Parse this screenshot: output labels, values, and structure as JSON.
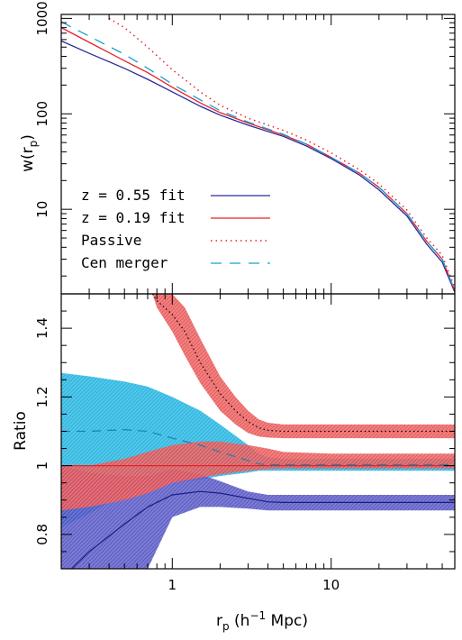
{
  "chart_data": [
    {
      "type": "line",
      "panel": "top",
      "ylabel": "w(r_p)",
      "yscale": "log",
      "xscale": "log",
      "xlim": [
        0.2,
        60
      ],
      "ylim": [
        1.3,
        1100
      ],
      "yticks": [
        {
          "value": 10,
          "label": "10"
        },
        {
          "value": 100,
          "label": "100"
        },
        {
          "value": 1000,
          "label": "1000"
        }
      ],
      "legend_position": "bottom-left",
      "series": [
        {
          "name": "z = 0.55 fit",
          "color": "#2a2a9a",
          "style": "solid",
          "x": [
            0.2,
            0.3,
            0.5,
            0.7,
            1.0,
            1.5,
            2.0,
            3.0,
            5.0,
            7.0,
            10.0,
            15.0,
            20.0,
            30.0,
            40.0,
            50.0,
            60.0
          ],
          "y": [
            580,
            430,
            300,
            230,
            170,
            120,
            97,
            76,
            58,
            46,
            34,
            23,
            16,
            8.5,
            4.3,
            2.8,
            1.35
          ]
        },
        {
          "name": "z = 0.19 fit",
          "color": "#e8202a",
          "style": "solid",
          "x": [
            0.2,
            0.3,
            0.5,
            0.7,
            1.0,
            1.5,
            2.0,
            3.0,
            5.0,
            7.0,
            10.0,
            15.0,
            20.0,
            30.0,
            40.0,
            50.0,
            60.0
          ],
          "y": [
            800,
            560,
            360,
            270,
            190,
            130,
            103,
            80,
            60,
            48,
            35,
            24,
            17,
            9.0,
            4.6,
            3.0,
            1.4
          ]
        },
        {
          "name": "Passive",
          "color": "#e8202a",
          "style": "dotted",
          "x": [
            0.4,
            0.5,
            0.7,
            1.0,
            1.5,
            2.0,
            3.0,
            5.0,
            7.0,
            10.0,
            15.0,
            20.0,
            30.0,
            40.0,
            50.0,
            60.0
          ],
          "y": [
            1000,
            800,
            500,
            290,
            170,
            123,
            90,
            67,
            53,
            39,
            26,
            18.5,
            9.8,
            5.0,
            3.3,
            1.5
          ]
        },
        {
          "name": "Cen merger",
          "color": "#1aa0d0",
          "style": "dashed",
          "x": [
            0.2,
            0.3,
            0.5,
            0.7,
            1.0,
            1.5,
            2.0,
            3.0,
            5.0,
            7.0,
            10.0,
            15.0,
            20.0,
            30.0,
            40.0,
            50.0,
            60.0
          ],
          "y": [
            920,
            650,
            420,
            300,
            205,
            140,
            108,
            82,
            61,
            48,
            35,
            24,
            17,
            9.0,
            4.6,
            3.0,
            1.4
          ]
        }
      ]
    },
    {
      "type": "area",
      "panel": "bottom",
      "xlabel": "r_p (h^-1 Mpc)",
      "ylabel": "Ratio",
      "xscale": "log",
      "xlim": [
        0.2,
        60
      ],
      "ylim": [
        0.7,
        1.5
      ],
      "xticks": [
        {
          "value": 1,
          "label": "1"
        },
        {
          "value": 10,
          "label": "10"
        }
      ],
      "yticks": [
        {
          "value": 0.8,
          "label": "0.8"
        },
        {
          "value": 1.0,
          "label": "1"
        },
        {
          "value": 1.2,
          "label": "1.2"
        },
        {
          "value": 1.4,
          "label": "1.4"
        }
      ],
      "reference_line": {
        "y": 1.0,
        "color": "#e8202a"
      },
      "bands": [
        {
          "color": "#4848c0",
          "x": [
            0.2,
            0.3,
            0.5,
            0.7,
            1.0,
            1.5,
            2.0,
            3.0,
            4.0,
            5.0,
            10.0,
            20.0,
            40.0,
            60.0
          ],
          "upper": [
            1.0,
            0.98,
            0.97,
            0.97,
            0.99,
            0.975,
            0.955,
            0.925,
            0.915,
            0.915,
            0.915,
            0.915,
            0.915,
            0.915
          ],
          "lower": [
            0.6,
            0.6,
            0.63,
            0.7,
            0.85,
            0.88,
            0.88,
            0.875,
            0.87,
            0.87,
            0.87,
            0.87,
            0.87,
            0.87
          ],
          "center": [
            0.67,
            0.75,
            0.83,
            0.88,
            0.915,
            0.925,
            0.92,
            0.905,
            0.895,
            0.893,
            0.893,
            0.893,
            0.893,
            0.893
          ]
        },
        {
          "color": "#1ab0dc",
          "x": [
            0.2,
            0.3,
            0.5,
            0.7,
            1.0,
            1.5,
            2.0,
            3.0,
            3.5,
            4.0,
            5.0,
            10.0,
            20.0,
            40.0,
            60.0
          ],
          "upper": [
            1.27,
            1.26,
            1.245,
            1.23,
            1.2,
            1.16,
            1.12,
            1.06,
            1.035,
            1.025,
            1.02,
            1.02,
            1.02,
            1.02,
            1.02
          ],
          "lower": [
            0.82,
            0.86,
            0.92,
            0.94,
            0.95,
            0.96,
            0.97,
            0.98,
            0.985,
            0.985,
            0.985,
            0.985,
            0.985,
            0.985,
            0.985
          ],
          "center": [
            1.1,
            1.1,
            1.105,
            1.1,
            1.08,
            1.06,
            1.04,
            1.015,
            1.005,
            1.003,
            1.003,
            1.003,
            1.003,
            1.003,
            1.003
          ]
        },
        {
          "color": "#e85050",
          "x": [
            0.2,
            0.3,
            0.5,
            0.7,
            1.0,
            1.5,
            2.0,
            3.0,
            4.0,
            5.0,
            10.0,
            20.0,
            40.0,
            60.0
          ],
          "upper": [
            1.0,
            1.0,
            1.02,
            1.04,
            1.06,
            1.07,
            1.07,
            1.06,
            1.05,
            1.04,
            1.035,
            1.035,
            1.035,
            1.035
          ],
          "lower": [
            0.87,
            0.88,
            0.9,
            0.92,
            0.95,
            0.965,
            0.975,
            0.985,
            0.99,
            0.992,
            0.992,
            0.992,
            0.992,
            0.992
          ]
        },
        {
          "color": "#e85050",
          "x": [
            0.75,
            0.8,
            1.0,
            1.2,
            1.5,
            2.0,
            2.5,
            3.0,
            3.5,
            4.0,
            5.0,
            10.0,
            20.0,
            40.0,
            60.0
          ],
          "upper": [
            1.5,
            1.5,
            1.5,
            1.46,
            1.37,
            1.26,
            1.2,
            1.16,
            1.135,
            1.125,
            1.12,
            1.12,
            1.12,
            1.12,
            1.12
          ],
          "lower": [
            1.5,
            1.46,
            1.39,
            1.32,
            1.24,
            1.16,
            1.12,
            1.095,
            1.085,
            1.082,
            1.08,
            1.08,
            1.08,
            1.08,
            1.08
          ],
          "center": [
            1.5,
            1.48,
            1.44,
            1.39,
            1.3,
            1.21,
            1.16,
            1.128,
            1.11,
            1.103,
            1.1,
            1.1,
            1.1,
            1.1,
            1.1
          ]
        }
      ]
    }
  ],
  "legend": [
    {
      "label": "z = 0.55 fit",
      "color": "#2a2a9a",
      "style": "solid"
    },
    {
      "label": "z = 0.19 fit",
      "color": "#e8202a",
      "style": "solid"
    },
    {
      "label": "Passive",
      "color": "#e8202a",
      "style": "dotted"
    },
    {
      "label": "Cen merger",
      "color": "#1aa0d0",
      "style": "dashed"
    }
  ],
  "axis_text": {
    "top_ylabel_main": "w(r",
    "top_ylabel_sub": "p",
    "top_ylabel_close": ")",
    "bottom_ylabel": "Ratio",
    "xlabel_main": "r",
    "xlabel_sub": "p",
    "xlabel_rest1": " (h",
    "xlabel_sup": "−1",
    "xlabel_rest2": " Mpc)"
  }
}
